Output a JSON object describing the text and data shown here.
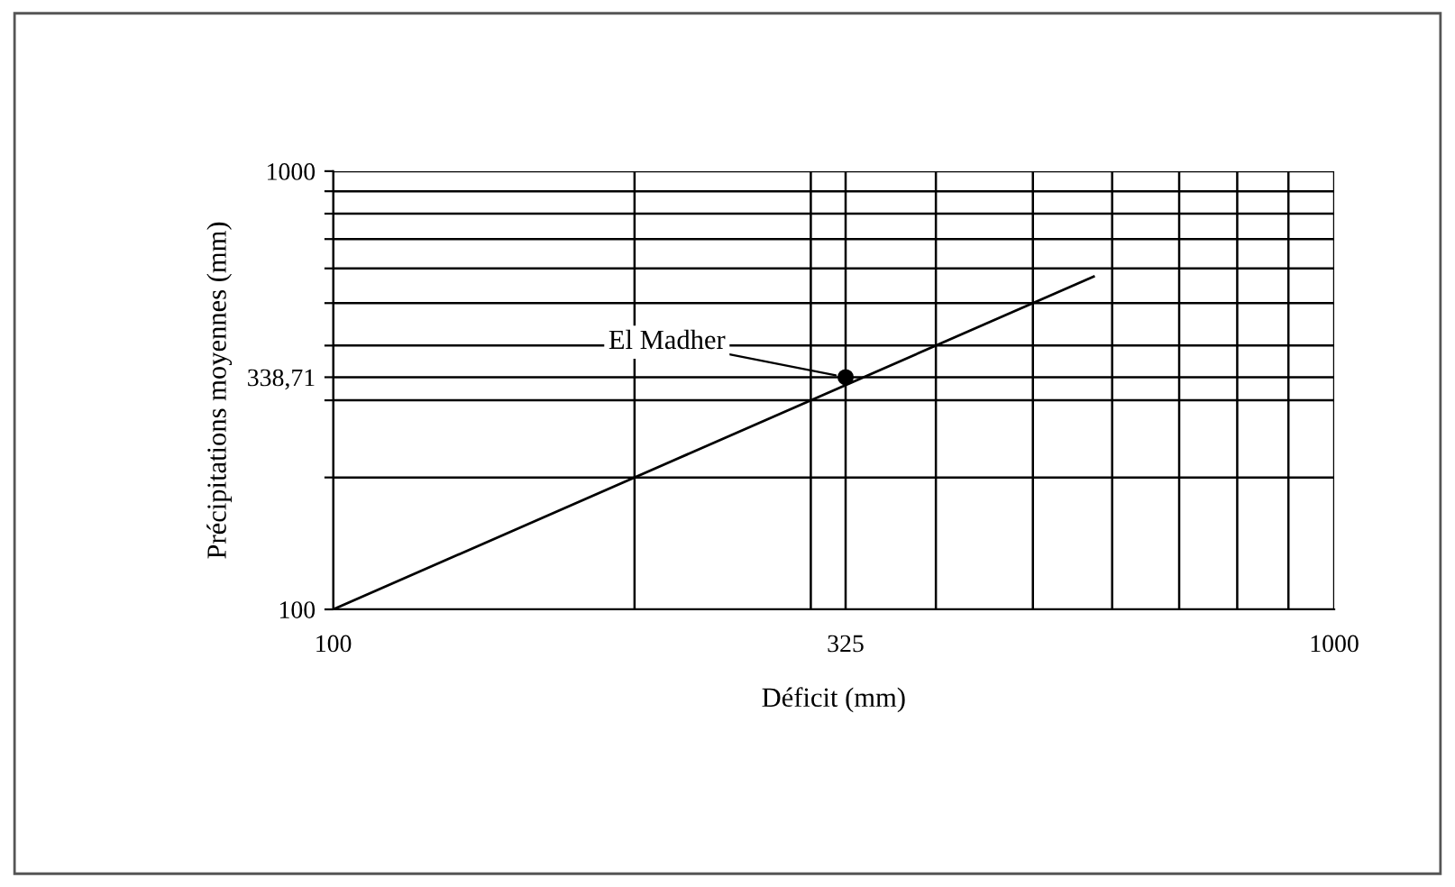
{
  "chart_data": {
    "type": "line",
    "xlabel": "Déficit (mm)",
    "ylabel": "Précipitations moyennes (mm)",
    "log": "xy",
    "grid": true,
    "series": [
      {
        "color": "#000000",
        "x": [
          100,
          575
        ],
        "values": [
          100,
          575
        ],
        "marker": "none"
      },
      {
        "type": "scatter",
        "color": "#000000",
        "x": [
          325
        ],
        "values": [
          338.71
        ],
        "marker": "circle"
      }
    ],
    "annotations": [
      {
        "text": "El Madher",
        "x": 325,
        "y": 338.71
      }
    ],
    "xlim": [
      100,
      1000
    ],
    "ylim": [
      100,
      1000
    ],
    "xticks": [
      100,
      {
        "value": 200,
        "label": null
      },
      {
        "value": 300,
        "label": null
      },
      325,
      {
        "value": 400,
        "label": null
      },
      {
        "value": 500,
        "label": null
      },
      {
        "value": 600,
        "label": null
      },
      {
        "value": 700,
        "label": null
      },
      {
        "value": 800,
        "label": null
      },
      {
        "value": 900,
        "label": null
      },
      1000
    ],
    "yticks": [
      100,
      {
        "value": 200,
        "label": null
      },
      {
        "value": 300,
        "label": null
      },
      {
        "value": 338.71,
        "label": "338,71"
      },
      {
        "value": 400,
        "label": null
      },
      {
        "value": 500,
        "label": null
      },
      {
        "value": 600,
        "label": null
      },
      {
        "value": 700,
        "label": null
      },
      {
        "value": 800,
        "label": null
      },
      {
        "value": 900,
        "label": null
      },
      1000
    ]
  }
}
